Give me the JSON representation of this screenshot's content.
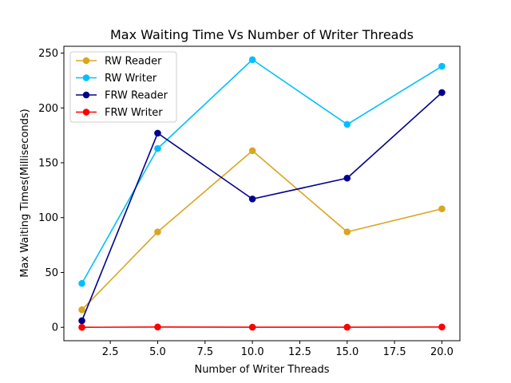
{
  "chart_data": {
    "type": "line",
    "title": "Max Waiting Time Vs Number of Writer Threads",
    "xlabel": "Number of Writer Threads",
    "ylabel": "Max Waiting Times(Milliseconds)",
    "x": [
      1,
      5,
      10,
      15,
      20
    ],
    "xlim": [
      0.05,
      20.95
    ],
    "ylim": [
      -12.2,
      256.2
    ],
    "xticks": [
      2.5,
      5.0,
      7.5,
      10.0,
      12.5,
      15.0,
      17.5,
      20.0
    ],
    "xtick_labels": [
      "2.5",
      "5.0",
      "7.5",
      "10.0",
      "12.5",
      "15.0",
      "17.5",
      "20.0"
    ],
    "yticks": [
      0,
      50,
      100,
      150,
      200,
      250
    ],
    "ytick_labels": [
      "0",
      "50",
      "100",
      "150",
      "200",
      "250"
    ],
    "grid": false,
    "legend_position": "top-left",
    "series": [
      {
        "name": "RW Reader",
        "color": "#DAA520",
        "values": [
          16,
          87,
          161,
          87,
          108
        ]
      },
      {
        "name": "RW Writer",
        "color": "#00BFFF",
        "values": [
          40,
          163,
          244,
          185,
          238
        ]
      },
      {
        "name": "FRW Reader",
        "color": "#00008B",
        "values": [
          6,
          177,
          117,
          136,
          214
        ]
      },
      {
        "name": "FRW Writer",
        "color": "#FF0000",
        "values": [
          0,
          0.3,
          0.1,
          0.1,
          0.3
        ]
      }
    ]
  }
}
